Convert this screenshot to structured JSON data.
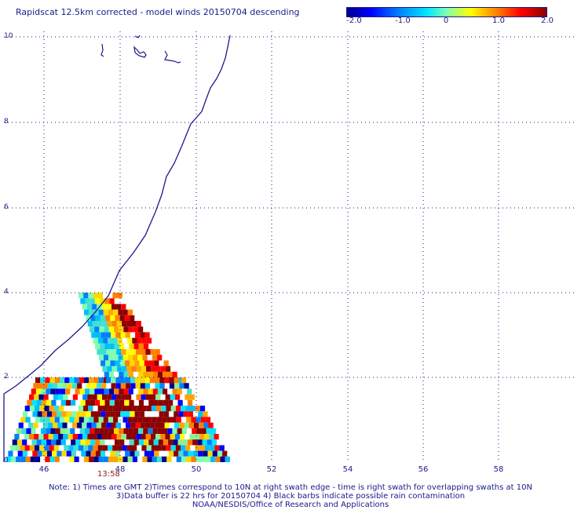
{
  "title": "Rapidscat 12.5km corrected - model winds 20150704 descending",
  "colorbar": {
    "labels": [
      "-2.0",
      "-1.0",
      "0",
      "1.0",
      "2.0"
    ],
    "range": [
      -2.0,
      2.0
    ],
    "colors": [
      "#00008b",
      "#0000ff",
      "#0080ff",
      "#00e5ff",
      "#7fffb0",
      "#ffff00",
      "#ff8000",
      "#ff0000",
      "#8b0000"
    ]
  },
  "axes": {
    "y_ticks": [
      "0",
      "2",
      "4",
      "6",
      "8",
      "10"
    ],
    "x_ticks": [
      "46",
      "48",
      "50",
      "52",
      "54",
      "56",
      "58"
    ],
    "lat_range": [
      0,
      10
    ],
    "lon_range": [
      45,
      60
    ]
  },
  "time_label": "13:58",
  "notes": [
    "Note: 1) Times are GMT 2)Times correspond to 10N at right swath edge - time is right swath for overlapping swaths at 10N",
    "3)Data buffer is 22 hrs for 20150704 4) Black barbs indicate possible rain contamination",
    "NOAA/NESDIS/Office of Research and Applications"
  ],
  "map_colors": {
    "coastline": "#1a1a8a",
    "grid": "#1a1a8a"
  }
}
